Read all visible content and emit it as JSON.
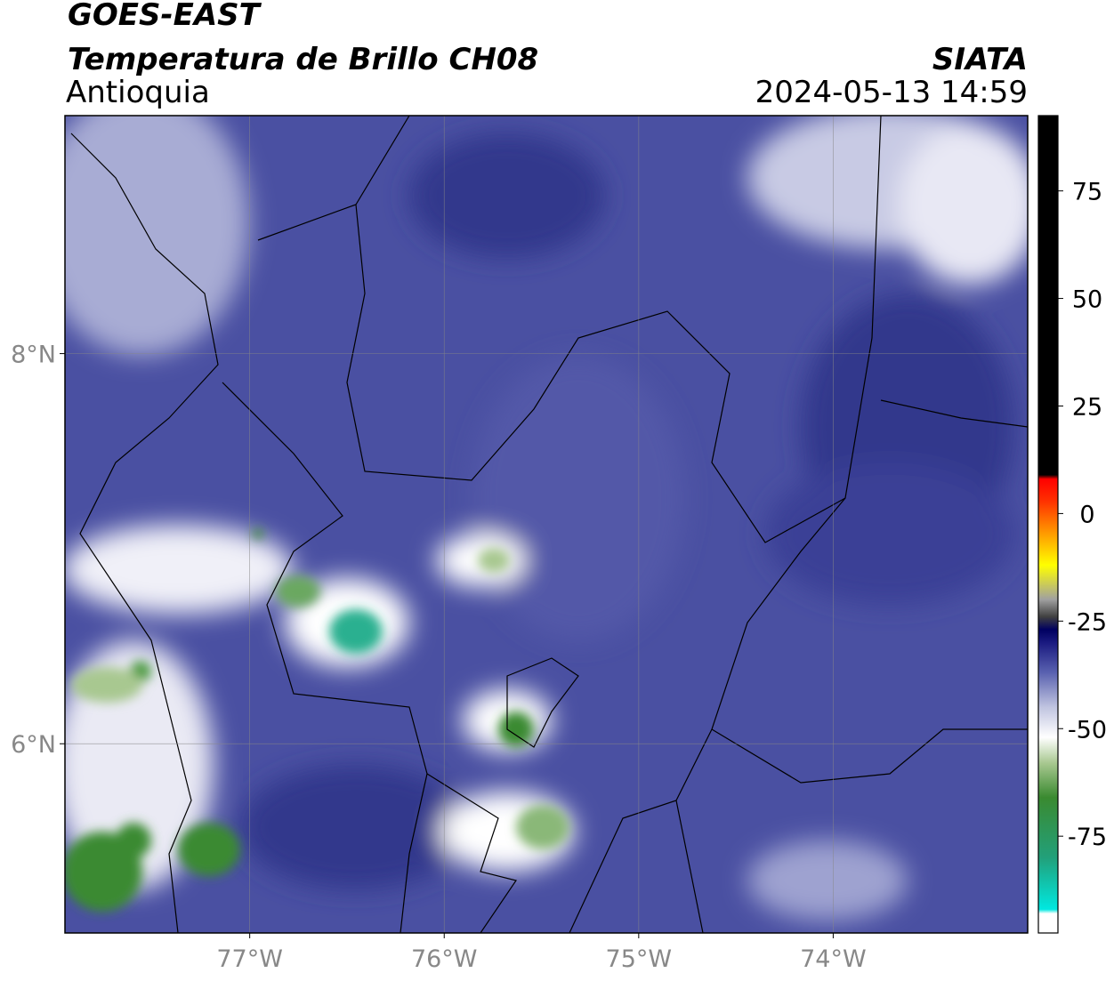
{
  "header": {
    "satellite": "GOES-EAST",
    "product": "Temperatura de Brillo CH08",
    "region": "Antioquia",
    "agency": "SIATA",
    "datetime": "2024-05-13 14:59"
  },
  "map": {
    "xlim": [
      -77.95,
      -73
    ],
    "ylim": [
      5.03,
      9.22
    ],
    "xticks": [
      {
        "value": -77,
        "label": "77°W"
      },
      {
        "value": -76,
        "label": "76°W"
      },
      {
        "value": -75,
        "label": "75°W"
      },
      {
        "value": -74,
        "label": "74°W"
      }
    ],
    "yticks": [
      {
        "value": 8,
        "label": "8°N"
      },
      {
        "value": 6,
        "label": "6°N"
      }
    ],
    "grid": true
  },
  "colorbar": {
    "lim": [
      -97.5,
      92.5
    ],
    "ticks": [
      75,
      50,
      25,
      0,
      -25,
      -50,
      -75
    ],
    "stops": [
      {
        "value": -97.5,
        "color": "#ffffff"
      },
      {
        "value": -93,
        "color": "#ffffff"
      },
      {
        "value": -92,
        "color": "#00e8e0"
      },
      {
        "value": -80,
        "color": "#22a07a"
      },
      {
        "value": -66,
        "color": "#3a8a30"
      },
      {
        "value": -58,
        "color": "#a8c890"
      },
      {
        "value": -52,
        "color": "#ffffff"
      },
      {
        "value": -45,
        "color": "#c0c4e0"
      },
      {
        "value": -37,
        "color": "#5a62b0"
      },
      {
        "value": -30,
        "color": "#1a1a80"
      },
      {
        "value": -27,
        "color": "#000060"
      },
      {
        "value": -24,
        "color": "#404040"
      },
      {
        "value": -20,
        "color": "#a0a0a0"
      },
      {
        "value": -12,
        "color": "#ffff00"
      },
      {
        "value": -5,
        "color": "#ffa000"
      },
      {
        "value": 3,
        "color": "#ff3000"
      },
      {
        "value": 8,
        "color": "#ff0000"
      },
      {
        "value": 9,
        "color": "#000000"
      },
      {
        "value": 92.5,
        "color": "#000000"
      }
    ]
  }
}
